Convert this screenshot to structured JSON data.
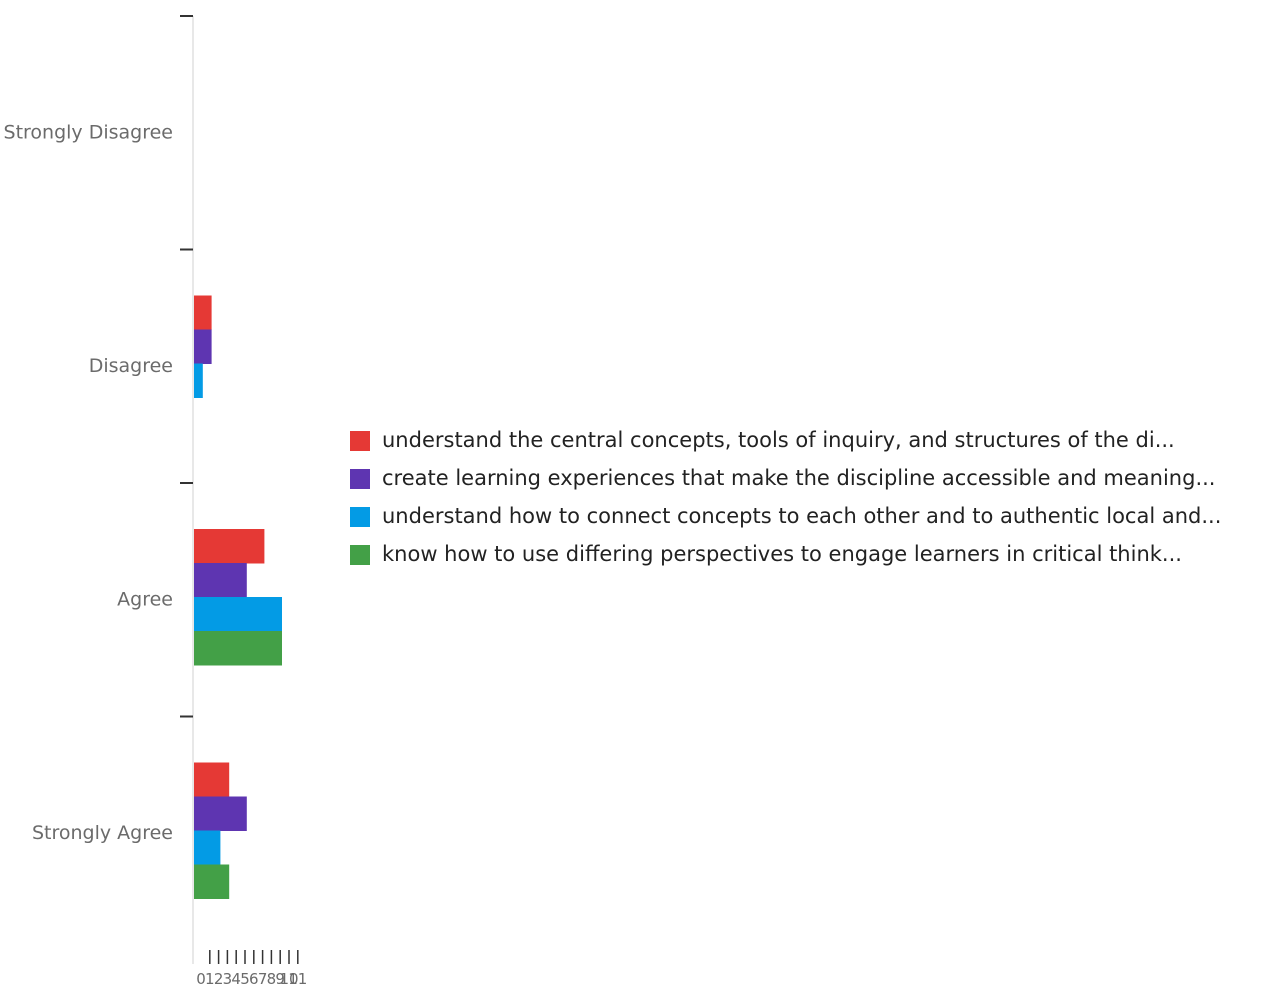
{
  "chart_data": {
    "type": "bar",
    "orientation": "horizontal",
    "categories": [
      "Strongly Disagree",
      "Disagree",
      "Agree",
      "Strongly Agree"
    ],
    "series": [
      {
        "name": "understand the central concepts, tools of inquiry, and structures of the di...",
        "color": "#e53935",
        "values": [
          0,
          2,
          8,
          4
        ]
      },
      {
        "name": "create learning experiences that make the discipline accessible and meaning...",
        "color": "#5e35b1",
        "values": [
          0,
          2,
          6,
          6
        ]
      },
      {
        "name": "understand how to connect concepts to each other and to authentic local and...",
        "color": "#039be5",
        "values": [
          0,
          1,
          10,
          3
        ]
      },
      {
        "name": "know how to use differing perspectives to engage learners in critical think...",
        "color": "#43a047",
        "values": [
          0,
          0,
          10,
          4
        ]
      }
    ],
    "x_ticks": [
      "0",
      "1",
      "2",
      "3",
      "4",
      "5",
      "6",
      "7",
      "8",
      "9",
      "10",
      "11"
    ],
    "xlim": [
      0,
      11
    ],
    "grid": false,
    "legend_position": "right"
  }
}
